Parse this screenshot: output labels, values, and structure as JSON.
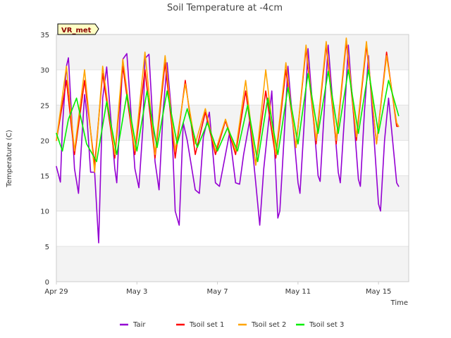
{
  "chart_data": {
    "type": "line",
    "title": "Soil Temperature at -4cm",
    "xlabel": "Time",
    "ylabel": "Temperature (C)",
    "station_label": "VR_met",
    "ylim": [
      0,
      35
    ],
    "yticks": [
      0,
      5,
      10,
      15,
      20,
      25,
      30,
      35
    ],
    "xlim": [
      "Apr 29",
      "May 17"
    ],
    "xticks": [
      {
        "label": "Apr 29",
        "day": 0
      },
      {
        "label": "May 3",
        "day": 4
      },
      {
        "label": "May 7",
        "day": 8
      },
      {
        "label": "May 11",
        "day": 12
      },
      {
        "label": "May 15",
        "day": 16
      }
    ],
    "grid": true,
    "legend_position": "bottom",
    "series": [
      {
        "name": "Tair",
        "color": "#9400d3",
        "x": [
          0.0,
          0.2,
          0.3,
          0.5,
          0.6,
          0.9,
          1.1,
          1.4,
          1.5,
          1.7,
          1.9,
          2.1,
          2.3,
          2.5,
          2.9,
          3.0,
          3.1,
          3.3,
          3.5,
          3.9,
          4.1,
          4.3,
          4.4,
          4.6,
          4.9,
          5.1,
          5.3,
          5.5,
          5.7,
          5.9,
          6.1,
          6.3,
          6.5,
          6.9,
          7.1,
          7.3,
          7.6,
          7.9,
          8.1,
          8.3,
          8.6,
          8.9,
          9.1,
          9.3,
          9.6,
          9.9,
          10.1,
          10.3,
          10.7,
          11.0,
          11.1,
          11.3,
          11.5,
          12.0,
          12.1,
          12.3,
          12.5,
          13.0,
          13.1,
          13.3,
          13.5,
          14.0,
          14.1,
          14.3,
          14.5,
          15.0,
          15.1,
          15.3,
          15.5,
          16.0,
          16.1,
          16.3,
          16.5,
          16.9,
          17.0
        ],
        "y": [
          16.3,
          14.1,
          22.0,
          30.5,
          31.7,
          16.0,
          12.5,
          26.5,
          24.0,
          15.5,
          15.5,
          5.5,
          26.0,
          30.4,
          16.0,
          14.0,
          20.0,
          31.5,
          32.3,
          16.0,
          13.3,
          22.0,
          31.6,
          32.2,
          17.0,
          13.0,
          24.0,
          31.0,
          24.5,
          10.0,
          8.0,
          22.5,
          20.0,
          13.0,
          12.5,
          20.5,
          24.0,
          14.0,
          13.5,
          16.5,
          21.0,
          14.0,
          13.8,
          18.0,
          22.8,
          14.0,
          8.0,
          16.0,
          27.0,
          9.0,
          10.0,
          20.0,
          30.5,
          14.0,
          12.5,
          22.0,
          33.0,
          15.0,
          14.2,
          24.0,
          33.5,
          15.5,
          14.0,
          23.0,
          33.5,
          14.5,
          13.5,
          24.0,
          32.0,
          11.0,
          10.0,
          20.0,
          26.0,
          14.0,
          13.5
        ]
      },
      {
        "name": "Tsoil set 1",
        "color": "#ff0000",
        "x": [
          0.0,
          0.5,
          0.9,
          1.4,
          1.9,
          2.3,
          2.9,
          3.3,
          3.9,
          4.4,
          4.9,
          5.4,
          5.9,
          6.4,
          6.9,
          7.4,
          7.9,
          8.4,
          8.9,
          9.4,
          9.9,
          10.4,
          10.9,
          11.4,
          11.9,
          12.4,
          12.9,
          13.4,
          13.9,
          14.4,
          14.9,
          15.4,
          15.9,
          16.4,
          16.9,
          17.0
        ],
        "y": [
          20.0,
          28.5,
          18.0,
          28.5,
          16.5,
          29.5,
          17.5,
          30.5,
          18.0,
          30.0,
          17.5,
          31.0,
          17.5,
          28.5,
          18.0,
          24.0,
          18.0,
          22.8,
          18.0,
          27.0,
          16.5,
          27.0,
          17.5,
          30.0,
          19.0,
          33.0,
          19.5,
          33.5,
          19.5,
          34.0,
          20.0,
          33.5,
          19.5,
          32.5,
          22.0,
          22.0
        ]
      },
      {
        "name": "Tsoil set 2",
        "color": "#ffa500",
        "x": [
          0.0,
          0.5,
          0.9,
          1.4,
          1.9,
          2.3,
          2.9,
          3.3,
          3.9,
          4.4,
          4.9,
          5.4,
          5.9,
          6.4,
          6.9,
          7.4,
          7.9,
          8.4,
          8.9,
          9.4,
          9.9,
          10.4,
          10.9,
          11.4,
          11.9,
          12.4,
          12.9,
          13.4,
          13.9,
          14.4,
          14.9,
          15.4,
          15.9,
          16.4,
          16.9,
          17.0
        ],
        "y": [
          20.0,
          30.5,
          18.5,
          30.0,
          15.5,
          30.5,
          18.0,
          31.5,
          18.5,
          32.5,
          18.0,
          32.0,
          18.5,
          28.0,
          19.5,
          24.5,
          18.5,
          23.0,
          18.5,
          28.5,
          16.5,
          30.0,
          18.0,
          31.0,
          19.0,
          33.5,
          20.0,
          34.0,
          20.0,
          34.5,
          20.5,
          34.0,
          19.5,
          32.0,
          22.5,
          22.0
        ]
      },
      {
        "name": "Tsoil set 3",
        "color": "#00ee00",
        "x": [
          0.0,
          0.3,
          0.6,
          1.0,
          1.5,
          2.0,
          2.5,
          3.0,
          3.5,
          4.0,
          4.5,
          5.0,
          5.5,
          6.0,
          6.5,
          7.0,
          7.5,
          8.0,
          8.5,
          9.0,
          9.5,
          10.0,
          10.5,
          11.0,
          11.5,
          12.0,
          12.5,
          13.0,
          13.5,
          14.0,
          14.5,
          15.0,
          15.5,
          16.0,
          16.5,
          17.0
        ],
        "y": [
          21.0,
          18.5,
          23.0,
          26.0,
          19.5,
          17.0,
          25.5,
          18.0,
          26.5,
          18.5,
          27.0,
          19.0,
          27.0,
          19.5,
          24.5,
          19.0,
          22.5,
          18.5,
          21.8,
          18.5,
          25.0,
          17.0,
          26.0,
          18.0,
          27.5,
          19.5,
          29.5,
          21.0,
          29.8,
          21.0,
          30.0,
          21.0,
          30.0,
          21.0,
          28.5,
          23.5
        ]
      }
    ]
  }
}
